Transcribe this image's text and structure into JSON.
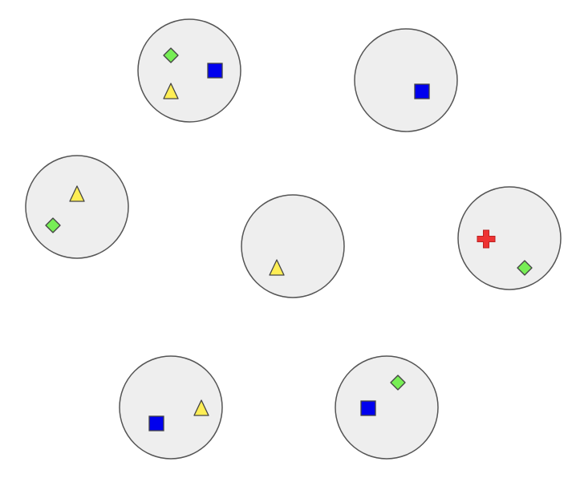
{
  "palette": {
    "background": "#ffffff",
    "circle_fill": "#eeeeee",
    "circle_stroke": "#555555",
    "shape_stroke": "#444444",
    "square": "#0000ee",
    "triangle": "#ffee55",
    "diamond": "#77ee55",
    "cross": "#ee3333"
  },
  "groups": [
    {
      "name": "circle-top-left",
      "shapes": [
        {
          "kind": "diamond"
        },
        {
          "kind": "square"
        },
        {
          "kind": "triangle"
        }
      ]
    },
    {
      "name": "circle-top-right",
      "shapes": [
        {
          "kind": "square"
        }
      ]
    },
    {
      "name": "circle-middle-left",
      "shapes": [
        {
          "kind": "triangle"
        },
        {
          "kind": "diamond"
        }
      ]
    },
    {
      "name": "circle-center",
      "shapes": [
        {
          "kind": "triangle"
        }
      ]
    },
    {
      "name": "circle-middle-right",
      "shapes": [
        {
          "kind": "cross"
        },
        {
          "kind": "diamond"
        }
      ]
    },
    {
      "name": "circle-bottom-left",
      "shapes": [
        {
          "kind": "square"
        },
        {
          "kind": "triangle"
        }
      ]
    },
    {
      "name": "circle-bottom-right",
      "shapes": [
        {
          "kind": "square"
        },
        {
          "kind": "diamond"
        }
      ]
    }
  ]
}
